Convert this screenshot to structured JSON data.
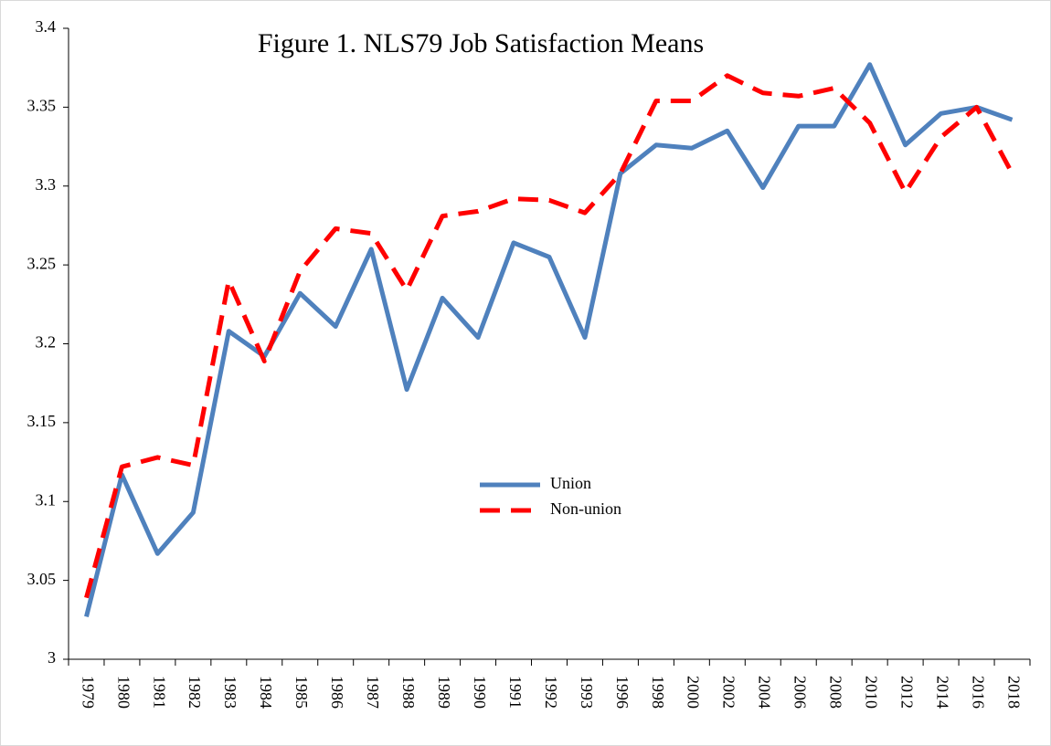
{
  "chart_data": {
    "type": "line",
    "title": "Figure 1. NLS79 Job Satisfaction Means",
    "categories": [
      "1979",
      "1980",
      "1981",
      "1982",
      "1983",
      "1984",
      "1985",
      "1986",
      "1987",
      "1988",
      "1989",
      "1990",
      "1991",
      "1992",
      "1993",
      "1996",
      "1998",
      "2000",
      "2002",
      "2004",
      "2006",
      "2008",
      "2010",
      "2012",
      "2014",
      "2016",
      "2018"
    ],
    "series": [
      {
        "name": "Union",
        "color": "#4f81bd",
        "dash": false,
        "values": [
          3.027,
          3.117,
          3.067,
          3.093,
          3.208,
          3.192,
          3.232,
          3.211,
          3.26,
          3.171,
          3.229,
          3.204,
          3.264,
          3.255,
          3.204,
          3.308,
          3.326,
          3.324,
          3.335,
          3.299,
          3.338,
          3.338,
          3.377,
          3.326,
          3.346,
          3.35,
          3.342
        ]
      },
      {
        "name": "Non-union",
        "color": "#ff0000",
        "dash": true,
        "values": [
          3.039,
          3.122,
          3.128,
          3.123,
          3.24,
          3.189,
          3.246,
          3.273,
          3.27,
          3.234,
          3.281,
          3.284,
          3.292,
          3.291,
          3.283,
          3.308,
          3.354,
          3.354,
          3.37,
          3.359,
          3.357,
          3.362,
          3.34,
          3.296,
          3.331,
          3.35,
          3.308
        ]
      }
    ],
    "ylim": [
      3,
      3.4
    ],
    "yticks": [
      3,
      3.05,
      3.1,
      3.15,
      3.2,
      3.25,
      3.3,
      3.35,
      3.4
    ],
    "grid": false,
    "legend": "center"
  }
}
